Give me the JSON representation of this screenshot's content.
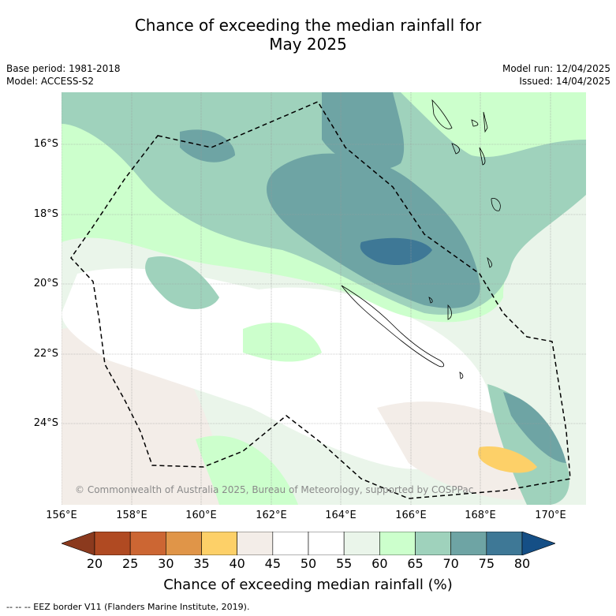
{
  "title_line1": "Chance of exceeding the median rainfall for",
  "title_line2": "May 2025",
  "meta": {
    "base_period": "Base period: 1981-2018",
    "model": "Model: ACCESS-S2",
    "model_run": "Model run: 12/04/2025",
    "issued": "Issued: 14/04/2025"
  },
  "copyright": "© Commonwealth of Australia 2025, Bureau of Meteorology, supported by COSPPac",
  "lon_labels": [
    "156°E",
    "158°E",
    "160°E",
    "162°E",
    "164°E",
    "166°E",
    "168°E",
    "170°E"
  ],
  "lat_labels": [
    "16°S",
    "18°S",
    "20°S",
    "22°S",
    "24°S"
  ],
  "colorbar": {
    "ticks": [
      "20",
      "25",
      "30",
      "35",
      "40",
      "45",
      "50",
      "55",
      "60",
      "65",
      "70",
      "75",
      "80"
    ],
    "colors": [
      "#8b3a1e",
      "#b04a22",
      "#cc6633",
      "#e09548",
      "#fdd068",
      "#f3ede8",
      "#ffffff",
      "#ffffff",
      "#eaf5ea",
      "#ccffcc",
      "#9fd2bc",
      "#6ea4a4",
      "#3e7896",
      "#154f86"
    ],
    "label": "Chance of exceeding median rainfall (%)"
  },
  "footer": "--  --  -- EEZ border V11 (Flanders Marine Institute, 2019)."
}
